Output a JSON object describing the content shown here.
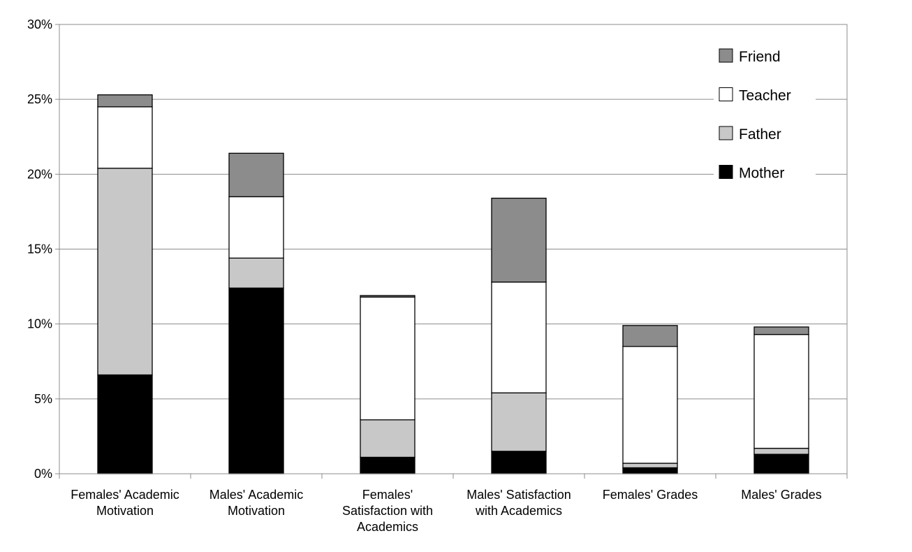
{
  "chart_data": {
    "type": "bar",
    "stacked": true,
    "title": "",
    "xlabel": "",
    "ylabel": "",
    "ylim": [
      0,
      30
    ],
    "y_ticks": [
      "0%",
      "5%",
      "10%",
      "15%",
      "20%",
      "25%",
      "30%"
    ],
    "y_tick_values": [
      0,
      5,
      10,
      15,
      20,
      25,
      30
    ],
    "grid": true,
    "legend_position": "top-right",
    "categories": [
      [
        "Females' Academic",
        "Motivation"
      ],
      [
        "Males' Academic",
        "Motivation"
      ],
      [
        "Females'",
        "Satisfaction with",
        "Academics"
      ],
      [
        "Males' Satisfaction",
        "with Academics"
      ],
      [
        "Females' Grades"
      ],
      [
        "Males' Grades"
      ]
    ],
    "series": [
      {
        "name": "Mother",
        "color": "#000000",
        "values": [
          6.6,
          12.4,
          1.1,
          1.5,
          0.4,
          1.3
        ]
      },
      {
        "name": "Father",
        "color": "#c8c8c8",
        "values": [
          13.8,
          2.0,
          2.5,
          3.9,
          0.3,
          0.4
        ]
      },
      {
        "name": "Teacher",
        "color": "#ffffff",
        "values": [
          4.1,
          4.1,
          8.2,
          7.4,
          7.8,
          7.6
        ]
      },
      {
        "name": "Friend",
        "color": "#8c8c8c",
        "values": [
          0.8,
          2.9,
          0.1,
          5.6,
          1.4,
          0.5
        ]
      }
    ],
    "legend_order": [
      "Friend",
      "Teacher",
      "Father",
      "Mother"
    ]
  }
}
